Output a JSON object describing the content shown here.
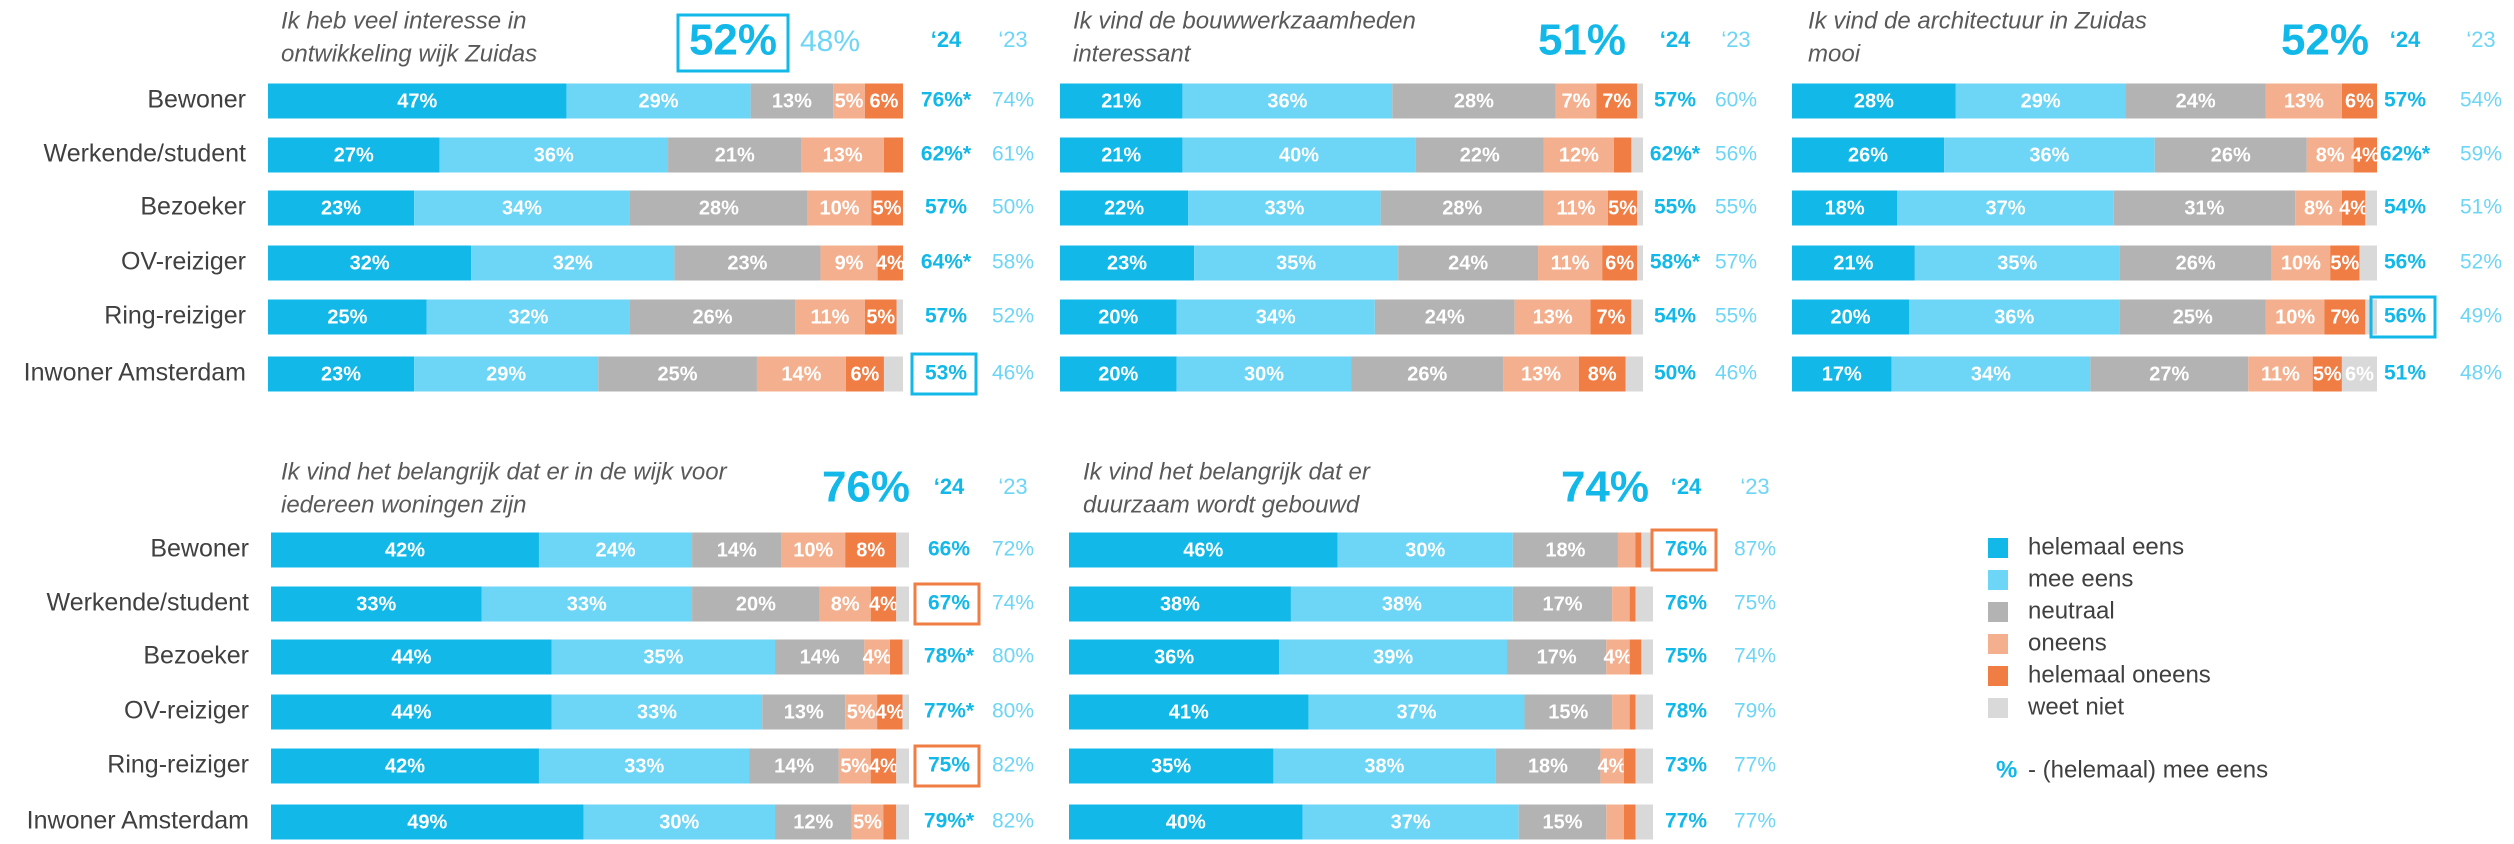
{
  "categories": [
    "Bewoner",
    "Werkende/student",
    "Bezoeker",
    "OV-reiziger",
    "Ring-reiziger",
    "Inwoner Amsterdam"
  ],
  "col_24": "‘24",
  "col_23": "‘23",
  "legend": [
    {
      "name": "helemaal eens",
      "color": "#12b8e8"
    },
    {
      "name": "mee eens",
      "color": "#6dd5f5"
    },
    {
      "name": "neutraal",
      "color": "#b3b3b3"
    },
    {
      "name": "oneens",
      "color": "#f4b08e"
    },
    {
      "name": "helemaal oneens",
      "color": "#ef7d44"
    },
    {
      "name": "weet niet",
      "color": "#d9d9d9"
    }
  ],
  "legend_note": {
    "symbol": "%",
    "text": "- (helemaal) mee eens"
  },
  "chart_data": [
    {
      "type": "stacked_bar",
      "title": [
        "Ik heb veel interesse in",
        "ontwikkeling wijk Zuidas"
      ],
      "total": "52%",
      "total_boxed": true,
      "total_23": "48%",
      "series": [
        {
          "values": [
            47,
            27,
            23,
            32,
            25,
            23
          ],
          "value_labels": [
            "47%",
            "27%",
            "23%",
            "32%",
            "25%",
            "23%"
          ]
        },
        {
          "values": [
            29,
            36,
            34,
            32,
            32,
            29
          ],
          "value_labels": [
            "29%",
            "36%",
            "34%",
            "32%",
            "32%",
            "29%"
          ]
        },
        {
          "values": [
            13,
            21,
            28,
            23,
            26,
            25
          ],
          "value_labels": [
            "13%",
            "21%",
            "28%",
            "23%",
            "26%",
            "25%"
          ]
        },
        {
          "values": [
            5,
            13,
            10,
            9,
            11,
            14
          ],
          "value_labels": [
            "5%",
            "13%",
            "10%",
            "9%",
            "11%",
            "14%"
          ]
        },
        {
          "values": [
            6,
            3,
            5,
            4,
            5,
            6
          ],
          "value_labels": [
            "6%",
            null,
            "5%",
            "4%",
            "5%",
            "6%"
          ]
        },
        {
          "values": [
            0,
            0,
            0,
            0,
            1,
            3
          ],
          "value_labels": [
            null,
            null,
            null,
            null,
            null,
            null
          ]
        }
      ],
      "y24": [
        "76%*",
        "62%*",
        "57%",
        "64%*",
        "57%",
        "53%"
      ],
      "y23": [
        "74%",
        "61%",
        "50%",
        "58%",
        "52%",
        "46%"
      ],
      "highlight_rows": [
        5
      ],
      "highlight_color": "#12b8e8"
    },
    {
      "type": "stacked_bar",
      "title": [
        "Ik vind de bouwwerkzaamheden",
        "interessant"
      ],
      "total": "51%",
      "series": [
        {
          "values": [
            21,
            21,
            22,
            23,
            20,
            20
          ],
          "value_labels": [
            "21%",
            "21%",
            "22%",
            "23%",
            "20%",
            "20%"
          ]
        },
        {
          "values": [
            36,
            40,
            33,
            35,
            34,
            30
          ],
          "value_labels": [
            "36%",
            "40%",
            "33%",
            "35%",
            "34%",
            "30%"
          ]
        },
        {
          "values": [
            28,
            22,
            28,
            24,
            24,
            26
          ],
          "value_labels": [
            "28%",
            "22%",
            "28%",
            "24%",
            "24%",
            "26%"
          ]
        },
        {
          "values": [
            7,
            12,
            11,
            11,
            13,
            13
          ],
          "value_labels": [
            "7%",
            "12%",
            "11%",
            "11%",
            "13%",
            "13%"
          ]
        },
        {
          "values": [
            7,
            3,
            5,
            6,
            7,
            8
          ],
          "value_labels": [
            "7%",
            null,
            "5%",
            "6%",
            "7%",
            "8%"
          ]
        },
        {
          "values": [
            1,
            2,
            1,
            1,
            2,
            3
          ],
          "value_labels": [
            null,
            null,
            null,
            null,
            null,
            null
          ]
        }
      ],
      "y24": [
        "57%",
        "62%*",
        "55%",
        "58%*",
        "54%",
        "50%"
      ],
      "y23": [
        "60%",
        "56%",
        "55%",
        "57%",
        "55%",
        "46%"
      ]
    },
    {
      "type": "stacked_bar",
      "title": [
        "Ik vind de architectuur in Zuidas",
        "mooi"
      ],
      "total": "52%",
      "series": [
        {
          "values": [
            28,
            26,
            18,
            21,
            20,
            17
          ],
          "value_labels": [
            "28%",
            "26%",
            "18%",
            "21%",
            "20%",
            "17%"
          ]
        },
        {
          "values": [
            29,
            36,
            37,
            35,
            36,
            34
          ],
          "value_labels": [
            "29%",
            "36%",
            "37%",
            "35%",
            "36%",
            "34%"
          ]
        },
        {
          "values": [
            24,
            26,
            31,
            26,
            25,
            27
          ],
          "value_labels": [
            "24%",
            "26%",
            "31%",
            "26%",
            "25%",
            "27%"
          ]
        },
        {
          "values": [
            13,
            8,
            8,
            10,
            10,
            11
          ],
          "value_labels": [
            "13%",
            "8%",
            "8%",
            "10%",
            "10%",
            "11%"
          ]
        },
        {
          "values": [
            6,
            4,
            4,
            5,
            7,
            5
          ],
          "value_labels": [
            "6%",
            "4%",
            "4%",
            "5%",
            "7%",
            "5%"
          ]
        },
        {
          "values": [
            0,
            0,
            2,
            3,
            2,
            6
          ],
          "value_labels": [
            null,
            null,
            null,
            null,
            null,
            "6%"
          ]
        }
      ],
      "y24": [
        "57%",
        "62%*",
        "54%",
        "56%",
        "56%",
        "51%"
      ],
      "y23": [
        "54%",
        "59%",
        "51%",
        "52%",
        "49%",
        "48%"
      ],
      "highlight_rows": [
        4
      ],
      "highlight_color": "#12b8e8"
    },
    {
      "type": "stacked_bar",
      "title": [
        "Ik vind het belangrijk dat er in de wijk voor",
        "iedereen woningen zijn"
      ],
      "total": "76%",
      "series": [
        {
          "values": [
            42,
            33,
            44,
            44,
            42,
            49
          ],
          "value_labels": [
            "42%",
            "33%",
            "44%",
            "44%",
            "42%",
            "49%"
          ]
        },
        {
          "values": [
            24,
            33,
            35,
            33,
            33,
            30
          ],
          "value_labels": [
            "24%",
            "33%",
            "35%",
            "33%",
            "33%",
            "30%"
          ]
        },
        {
          "values": [
            14,
            20,
            14,
            13,
            14,
            12
          ],
          "value_labels": [
            "14%",
            "20%",
            "14%",
            "13%",
            "14%",
            "12%"
          ]
        },
        {
          "values": [
            10,
            8,
            4,
            5,
            5,
            5
          ],
          "value_labels": [
            "10%",
            "8%",
            "4%",
            "5%",
            "5%",
            "5%"
          ]
        },
        {
          "values": [
            8,
            4,
            2,
            4,
            4,
            2
          ],
          "value_labels": [
            "8%",
            "4%",
            null,
            "4%",
            "4%",
            null
          ]
        },
        {
          "values": [
            2,
            2,
            1,
            1,
            2,
            2
          ],
          "value_labels": [
            null,
            null,
            null,
            null,
            null,
            null
          ]
        }
      ],
      "y24": [
        "66%",
        "67%",
        "78%*",
        "77%*",
        "75%",
        "79%*"
      ],
      "y23": [
        "72%",
        "74%",
        "80%",
        "80%",
        "82%",
        "82%"
      ],
      "highlight_rows": [
        1,
        4
      ],
      "highlight_color": "#ef7d44"
    },
    {
      "type": "stacked_bar",
      "title": [
        "Ik vind het belangrijk dat er",
        "duurzaam wordt gebouwd"
      ],
      "total": "74%",
      "series": [
        {
          "values": [
            46,
            38,
            36,
            41,
            35,
            40
          ],
          "value_labels": [
            "46%",
            "38%",
            "36%",
            "41%",
            "35%",
            "40%"
          ]
        },
        {
          "values": [
            30,
            38,
            39,
            37,
            38,
            37
          ],
          "value_labels": [
            "30%",
            "38%",
            "39%",
            "37%",
            "38%",
            "37%"
          ]
        },
        {
          "values": [
            18,
            17,
            17,
            15,
            18,
            15
          ],
          "value_labels": [
            "18%",
            "17%",
            "17%",
            "15%",
            "18%",
            "15%"
          ]
        },
        {
          "values": [
            3,
            3,
            4,
            3,
            4,
            3
          ],
          "value_labels": [
            null,
            null,
            "4%",
            null,
            "4%",
            null
          ]
        },
        {
          "values": [
            1,
            1,
            2,
            1,
            2,
            2
          ],
          "value_labels": [
            null,
            null,
            null,
            null,
            null,
            null
          ]
        },
        {
          "values": [
            2,
            3,
            2,
            3,
            3,
            3
          ],
          "value_labels": [
            null,
            null,
            null,
            null,
            null,
            null
          ]
        }
      ],
      "y24": [
        "76%",
        "76%",
        "75%",
        "78%",
        "73%",
        "77%"
      ],
      "y23": [
        "87%",
        "75%",
        "74%",
        "79%",
        "77%",
        "77%"
      ],
      "highlight_rows": [
        0
      ],
      "highlight_color": "#ef7d44"
    }
  ]
}
